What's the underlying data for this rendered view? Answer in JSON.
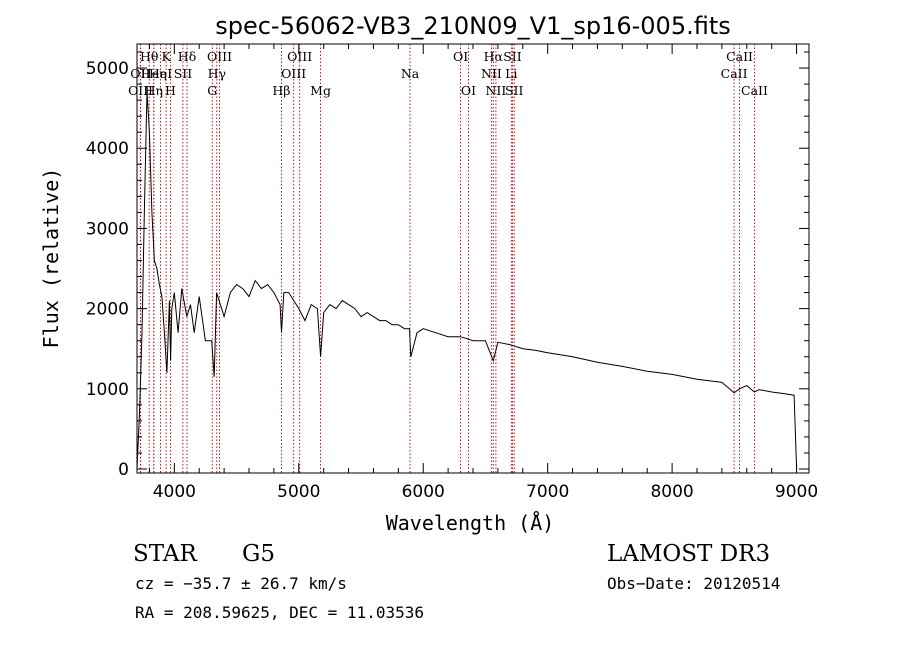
{
  "chart_data": {
    "type": "line",
    "title": "spec-56062-VB3_210N09_V1_sp16-005.fits",
    "xlabel": "Wavelength (Å)",
    "ylabel": "Flux (relative)",
    "xlim": [
      3700,
      9100
    ],
    "ylim": [
      -50,
      5300
    ],
    "x_ticks": [
      4000,
      5000,
      6000,
      7000,
      8000,
      9000
    ],
    "x_tick_labels": [
      "4000",
      "5000",
      "6000",
      "7000",
      "8000",
      "9000"
    ],
    "y_ticks": [
      0,
      1000,
      2000,
      3000,
      4000,
      5000
    ],
    "y_tick_labels": [
      "0",
      "1000",
      "2000",
      "3000",
      "4000",
      "5000"
    ],
    "grid": false,
    "series": [
      {
        "name": "spectrum",
        "x": [
          3700,
          3720,
          3740,
          3760,
          3780,
          3800,
          3820,
          3840,
          3860,
          3880,
          3900,
          3920,
          3940,
          3960,
          3970,
          3980,
          4000,
          4030,
          4060,
          4100,
          4130,
          4160,
          4200,
          4250,
          4300,
          4320,
          4340,
          4400,
          4450,
          4500,
          4550,
          4600,
          4650,
          4700,
          4750,
          4800,
          4850,
          4861,
          4880,
          4920,
          4960,
          5000,
          5050,
          5100,
          5150,
          5175,
          5200,
          5250,
          5300,
          5350,
          5400,
          5450,
          5500,
          5550,
          5600,
          5650,
          5700,
          5750,
          5800,
          5850,
          5890,
          5900,
          5950,
          6000,
          6100,
          6200,
          6300,
          6400,
          6500,
          6563,
          6600,
          6700,
          6800,
          6900,
          7000,
          7200,
          7400,
          7600,
          7800,
          8000,
          8200,
          8400,
          8498,
          8542,
          8600,
          8662,
          8700,
          8800,
          8900,
          8980,
          9000
        ],
        "y": [
          0,
          700,
          1700,
          3300,
          4700,
          4200,
          3200,
          2600,
          2500,
          2300,
          2150,
          1700,
          1200,
          2100,
          1350,
          2000,
          2200,
          1700,
          2250,
          1900,
          2050,
          1700,
          2150,
          1600,
          1600,
          1150,
          2200,
          1900,
          2200,
          2300,
          2250,
          2150,
          2350,
          2250,
          2300,
          2200,
          2050,
          1700,
          2200,
          2200,
          2100,
          2000,
          1850,
          2050,
          2000,
          1400,
          1950,
          2050,
          2000,
          2100,
          2050,
          2000,
          1900,
          1950,
          1900,
          1850,
          1850,
          1800,
          1800,
          1750,
          1750,
          1400,
          1700,
          1750,
          1700,
          1650,
          1650,
          1600,
          1600,
          1350,
          1580,
          1550,
          1500,
          1480,
          1450,
          1400,
          1330,
          1280,
          1220,
          1180,
          1120,
          1080,
          950,
          1000,
          1040,
          960,
          990,
          960,
          940,
          920,
          0
        ]
      }
    ],
    "lines": [
      {
        "label": "Hθ",
        "wave": 3798,
        "row": 1
      },
      {
        "label": "OII",
        "wave": 3727,
        "row": 2
      },
      {
        "label": "Heη",
        "wave": 3835,
        "row": 2
      },
      {
        "label": "OIII",
        "wave": 3729,
        "row": 3
      },
      {
        "label": "Hη",
        "wave": 3835,
        "row": 3
      },
      {
        "label": "K",
        "wave": 3934,
        "row": 1
      },
      {
        "label": "HeI",
        "wave": 3889,
        "row": 2
      },
      {
        "label": "H",
        "wave": 3969,
        "row": 3
      },
      {
        "label": "SII",
        "wave": 4069,
        "row": 2
      },
      {
        "label": "Hδ",
        "wave": 4102,
        "row": 1
      },
      {
        "label": "OIII",
        "wave": 4363,
        "row": 1
      },
      {
        "label": "Hγ",
        "wave": 4341,
        "row": 2
      },
      {
        "label": "G",
        "wave": 4305,
        "row": 3
      },
      {
        "label": "Hβ",
        "wave": 4861,
        "row": 3
      },
      {
        "label": "OIII",
        "wave": 5007,
        "row": 1
      },
      {
        "label": "OIII",
        "wave": 4959,
        "row": 2
      },
      {
        "label": "Mg",
        "wave": 5175,
        "row": 3
      },
      {
        "label": "Na",
        "wave": 5894,
        "row": 2
      },
      {
        "label": "OI",
        "wave": 6300,
        "row": 1
      },
      {
        "label": "OI",
        "wave": 6364,
        "row": 3
      },
      {
        "label": "Hα",
        "wave": 6563,
        "row": 1
      },
      {
        "label": "NII",
        "wave": 6548,
        "row": 2
      },
      {
        "label": "NII",
        "wave": 6584,
        "row": 3
      },
      {
        "label": "SII",
        "wave": 6717,
        "row": 1
      },
      {
        "label": "Li",
        "wave": 6708,
        "row": 2
      },
      {
        "label": "SII",
        "wave": 6731,
        "row": 3
      },
      {
        "label": "CaII",
        "wave": 8542,
        "row": 1
      },
      {
        "label": "CaII",
        "wave": 8498,
        "row": 2
      },
      {
        "label": "CaII",
        "wave": 8662,
        "row": 3
      }
    ],
    "info": {
      "object_class": "STAR",
      "subclass": "G5",
      "survey": "LAMOST DR3",
      "cz": "cz = −35.7 ± 26.7 km/s",
      "obs_date": "Obs−Date: 20120514",
      "coords": "RA = 208.59625, DEC =  11.03536"
    },
    "colors": {
      "spectrum": "#000000",
      "line_markers": "#c00000",
      "axes": "#000000"
    }
  }
}
